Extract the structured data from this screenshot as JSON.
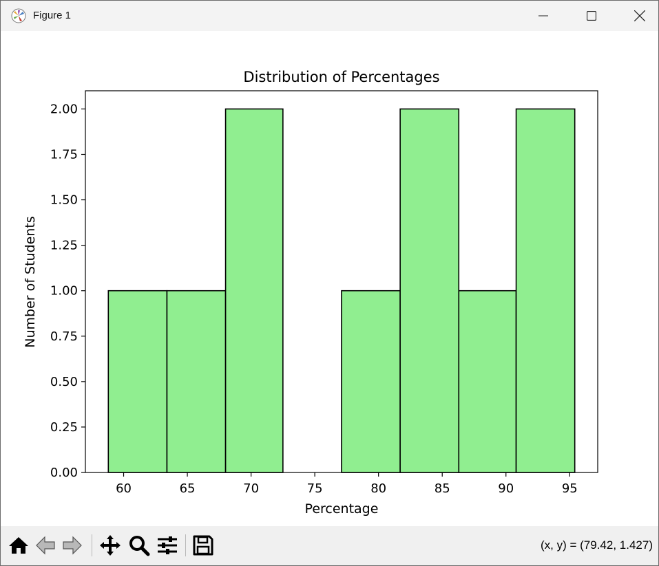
{
  "window": {
    "title": "Figure 1",
    "controls": [
      "minimize",
      "maximize",
      "close"
    ]
  },
  "toolbar": {
    "tools": [
      "home-icon",
      "back-arrow-icon",
      "forward-arrow-icon",
      "pan-icon",
      "zoom-icon",
      "configure-subplots-icon",
      "save-icon"
    ],
    "coords_text": "(x, y) = (79.42, 1.427)"
  },
  "chart_data": {
    "type": "bar",
    "title": "Distribution of Percentages",
    "xlabel": "Percentage",
    "ylabel": "Number of Students",
    "bin_edges": [
      58.8,
      63.4,
      68.0,
      72.5,
      77.1,
      81.7,
      86.3,
      90.8,
      95.4
    ],
    "values": [
      1,
      1,
      2,
      0,
      1,
      2,
      1,
      2
    ],
    "xlim": [
      57.0,
      97.2
    ],
    "ylim": [
      0,
      2.1
    ],
    "xticks": [
      60,
      65,
      70,
      75,
      80,
      85,
      90,
      95
    ],
    "yticks": [
      0.0,
      0.25,
      0.5,
      0.75,
      1.0,
      1.25,
      1.5,
      1.75,
      2.0
    ],
    "ytick_labels": [
      "0.00",
      "0.25",
      "0.50",
      "0.75",
      "1.00",
      "1.25",
      "1.50",
      "1.75",
      "2.00"
    ],
    "bar_color": "#90ee90",
    "edge_color": "#000000",
    "grid": false
  }
}
